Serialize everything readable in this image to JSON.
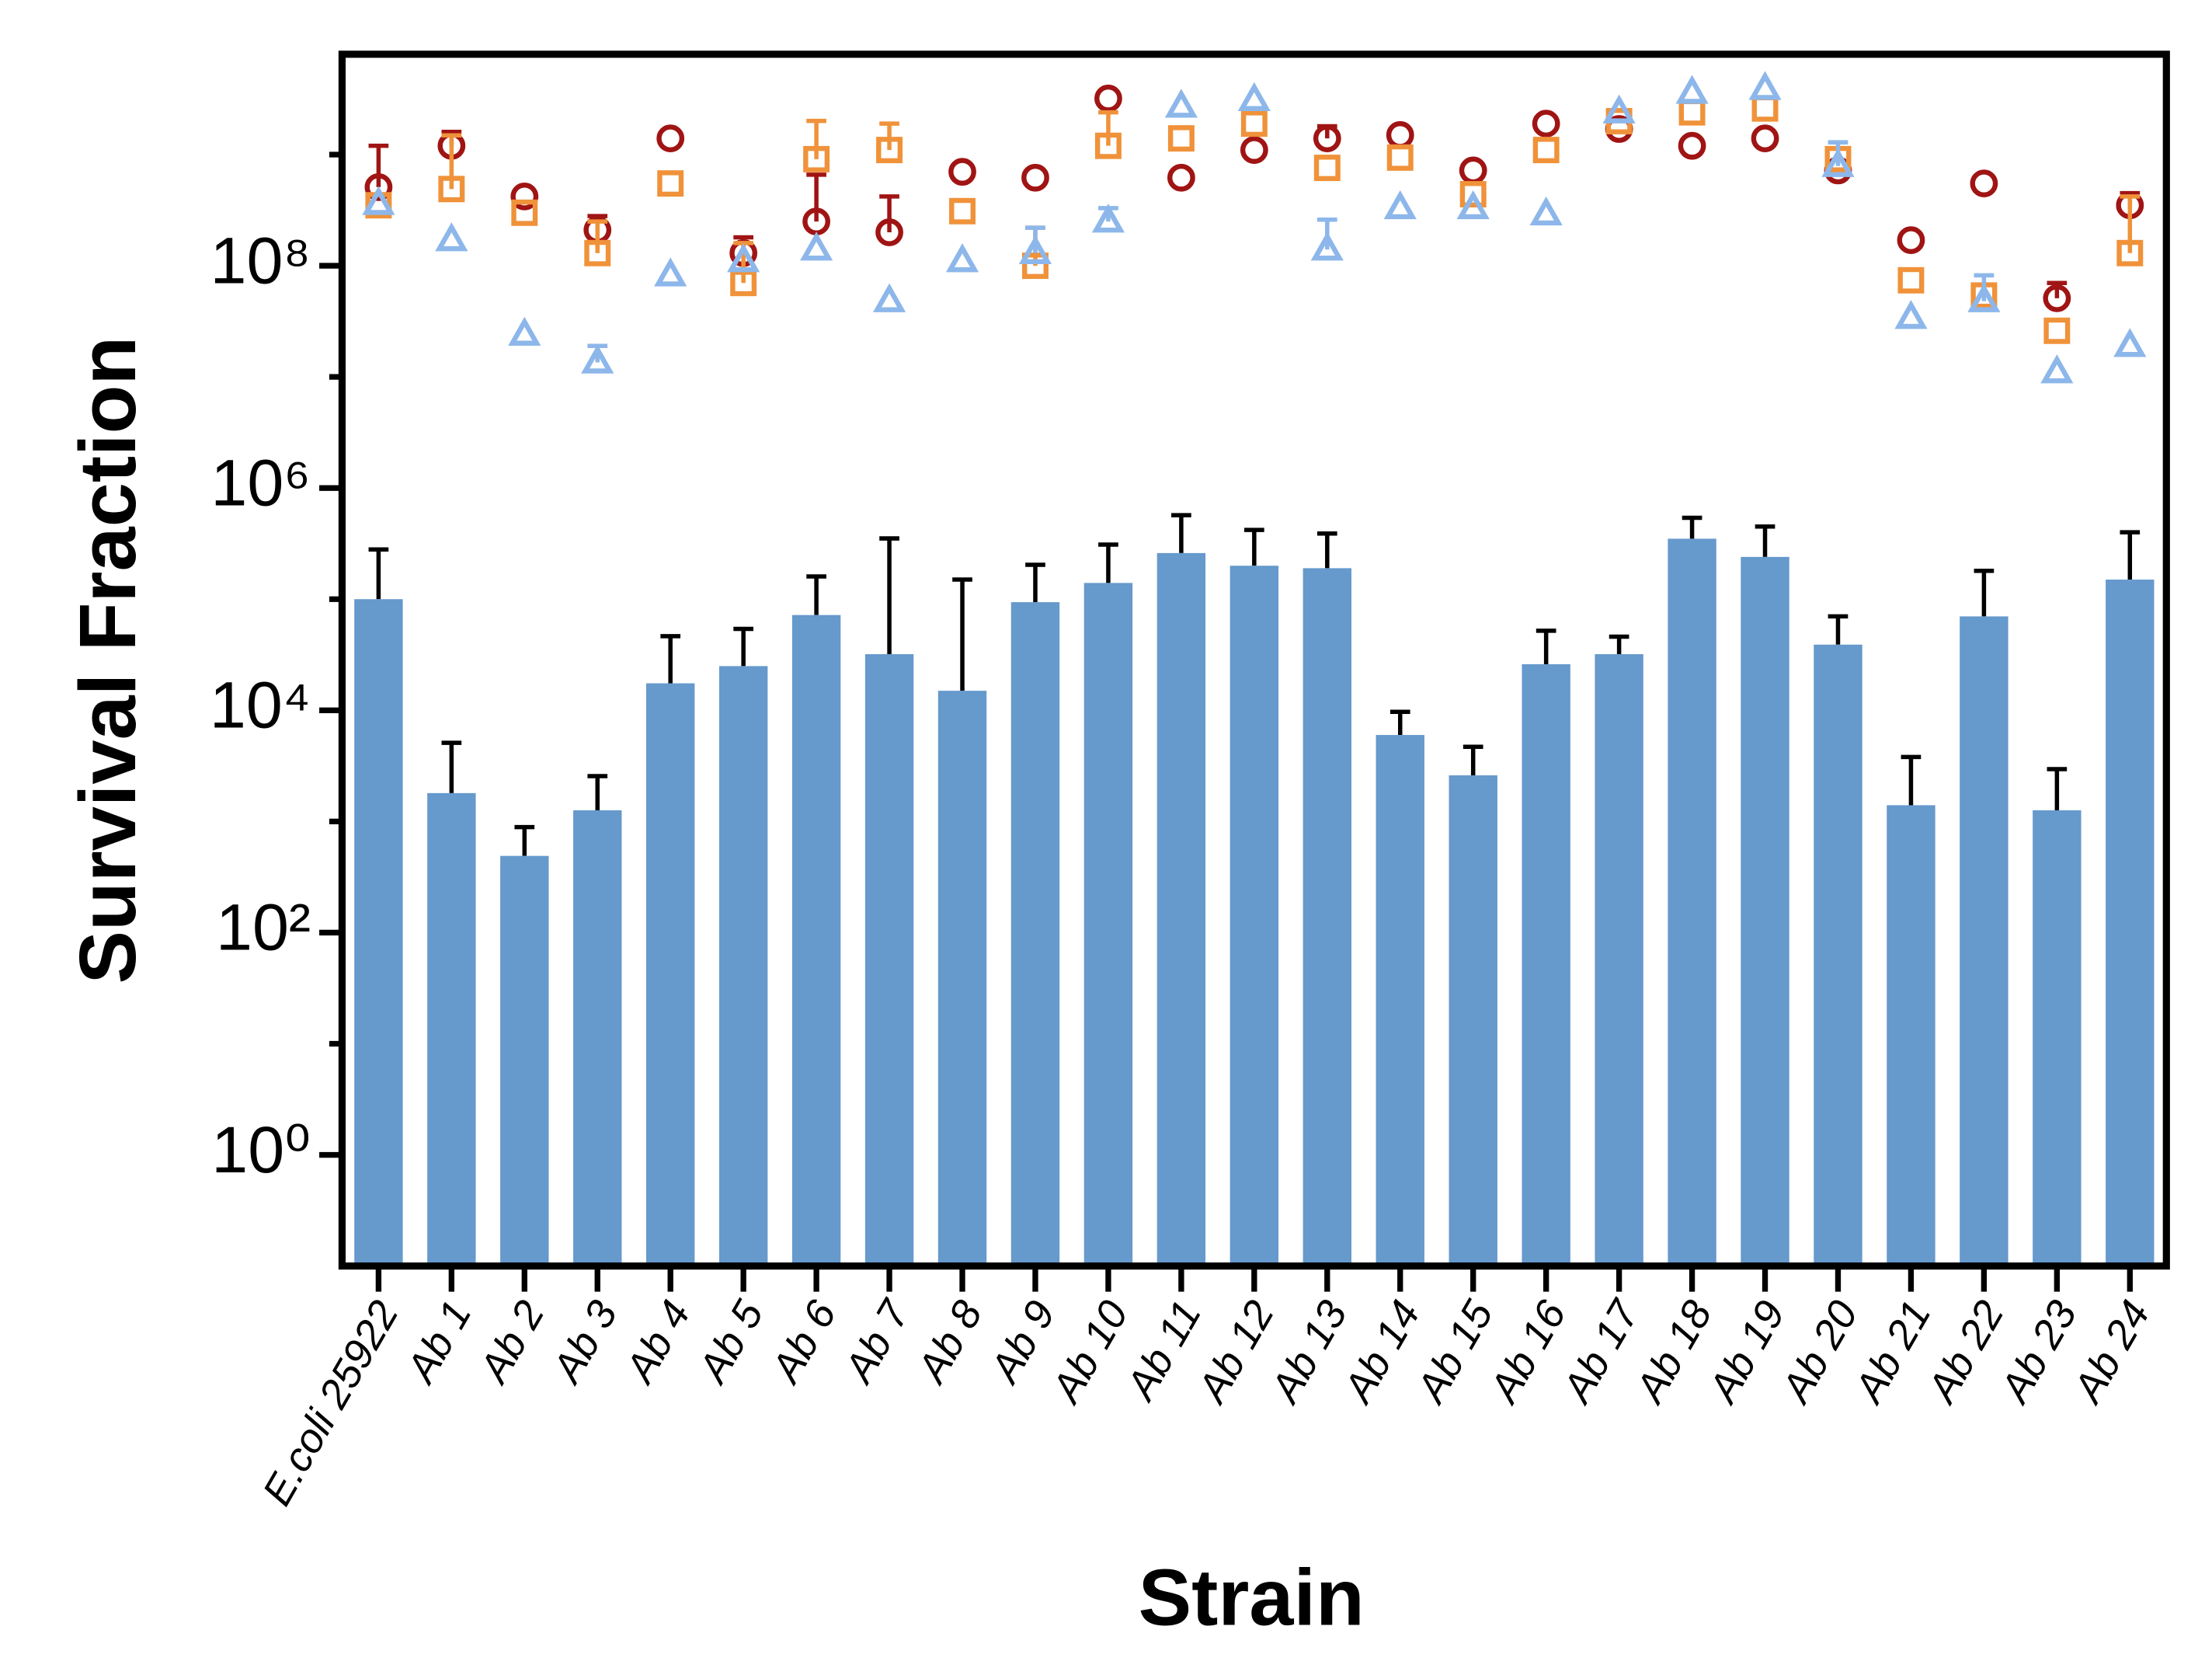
{
  "chart_data": {
    "type": "bar",
    "x_label": "Strain",
    "y_label": "Survival Fraction",
    "categories": [
      "E.coli 25922",
      "Ab 1",
      "Ab 2",
      "Ab 3",
      "Ab 4",
      "Ab 5",
      "Ab 6",
      "Ab 7",
      "Ab 8",
      "Ab 9",
      "Ab 10",
      "Ab 11",
      "Ab 12",
      "Ab 13",
      "Ab 14",
      "Ab 15",
      "Ab 16",
      "Ab 17",
      "Ab 18",
      "Ab 19",
      "Ab 20",
      "Ab 21",
      "Ab 22",
      "Ab 23",
      "Ab 24"
    ],
    "log_y": true,
    "ylim": [
      0.1,
      8000000000
    ],
    "yticks": [
      {
        "value": 1,
        "label": "10⁰"
      },
      {
        "value": 100,
        "label": "10²"
      },
      {
        "value": 10000,
        "label": "10⁴"
      },
      {
        "value": 1000000,
        "label": "10⁶"
      },
      {
        "value": 100000000,
        "label": "10⁸"
      }
    ],
    "yminorticks": [
      10,
      1000,
      100000,
      10000000,
      1000000000
    ],
    "series": [
      {
        "type": "bar",
        "color": "#6699cc",
        "values": [
          100000,
          1800,
          490,
          1260,
          17500,
          25000,
          72000,
          32000,
          15000,
          94000,
          140000,
          260000,
          200000,
          190000,
          6000,
          2600,
          26000,
          32000,
          350000,
          240000,
          39000,
          1400,
          70000,
          1260,
          150000
        ],
        "errors": [
          180000,
          3300,
          400,
          1300,
          29000,
          29000,
          88000,
          320000,
          135000,
          110000,
          170000,
          310000,
          220000,
          200000,
          3700,
          2100,
          26000,
          14000,
          190000,
          210000,
          31000,
          2400,
          110000,
          1700,
          250000
        ]
      },
      {
        "type": "scatter",
        "marker": "circle",
        "color": "#a01414",
        "values": [
          510000000,
          1200000000,
          420000000,
          210000000,
          1400000000,
          130000000,
          250000000,
          200000000,
          700000000,
          620000000,
          3200000000,
          620000000,
          1100000000,
          1400000000,
          1500000000,
          720000000,
          1900000000,
          1700000000,
          1200000000,
          1400000000,
          720000000,
          170000000,
          550000000,
          51000000,
          350000000
        ],
        "errors": [
          690000000,
          400000000,
          null,
          70000000,
          null,
          50000000,
          410000000,
          220000000,
          null,
          null,
          null,
          null,
          null,
          400000000,
          null,
          null,
          null,
          null,
          null,
          null,
          null,
          null,
          null,
          19000000,
          100000000
        ]
      },
      {
        "type": "scatter",
        "marker": "square",
        "color": "#f0923a",
        "values": [
          350000000,
          490000000,
          300000000,
          130000000,
          550000000,
          70000000,
          910000000,
          1100000000,
          310000000,
          100000000,
          1200000000,
          1400000000,
          1900000000,
          760000000,
          940000000,
          440000000,
          1100000000,
          2000000000,
          2400000000,
          2600000000,
          910000000,
          74000000,
          54000000,
          26000000,
          130000000
        ],
        "errors": [
          null,
          1000000000,
          null,
          120000000,
          null,
          90000000,
          1100000000,
          800000000,
          null,
          120000000,
          1200000000,
          null,
          null,
          null,
          null,
          null,
          null,
          null,
          null,
          null,
          null,
          null,
          null,
          null,
          290000000
        ]
      },
      {
        "type": "scatter",
        "marker": "triangle",
        "color": "#8db7ea",
        "values": [
          360000000,
          170000000,
          24000000,
          13500000,
          82000000,
          110000000,
          140000000,
          48000000,
          110000000,
          130000000,
          250000000,
          2700000000,
          3100000000,
          140000000,
          330000000,
          330000000,
          290000000,
          2400000000,
          3600000000,
          3900000000,
          790000000,
          34000000,
          48000000,
          11000000,
          19000000
        ],
        "errors": [
          null,
          null,
          null,
          5500000,
          null,
          null,
          null,
          null,
          null,
          90000000,
          80000000,
          null,
          null,
          120000000,
          null,
          null,
          null,
          null,
          null,
          null,
          500000000,
          null,
          34000000,
          null,
          null
        ]
      }
    ]
  }
}
